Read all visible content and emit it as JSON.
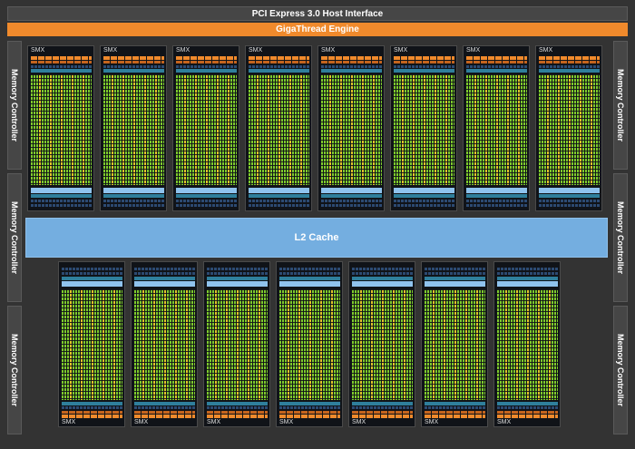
{
  "host_interface": "PCI Express 3.0 Host Interface",
  "thread_engine": "GigaThread Engine",
  "l2_cache": "L2 Cache",
  "memory_controller": "Memory Controller",
  "smx_label": "SMX",
  "smx_top_row_count": 8,
  "smx_bottom_row_count": 7,
  "colors": {
    "background": "#333333",
    "orange": "#f08a2c",
    "core_green": "#7ecb2c",
    "core_yellow": "#e2c62a",
    "cache_blue": "#74aee0"
  }
}
